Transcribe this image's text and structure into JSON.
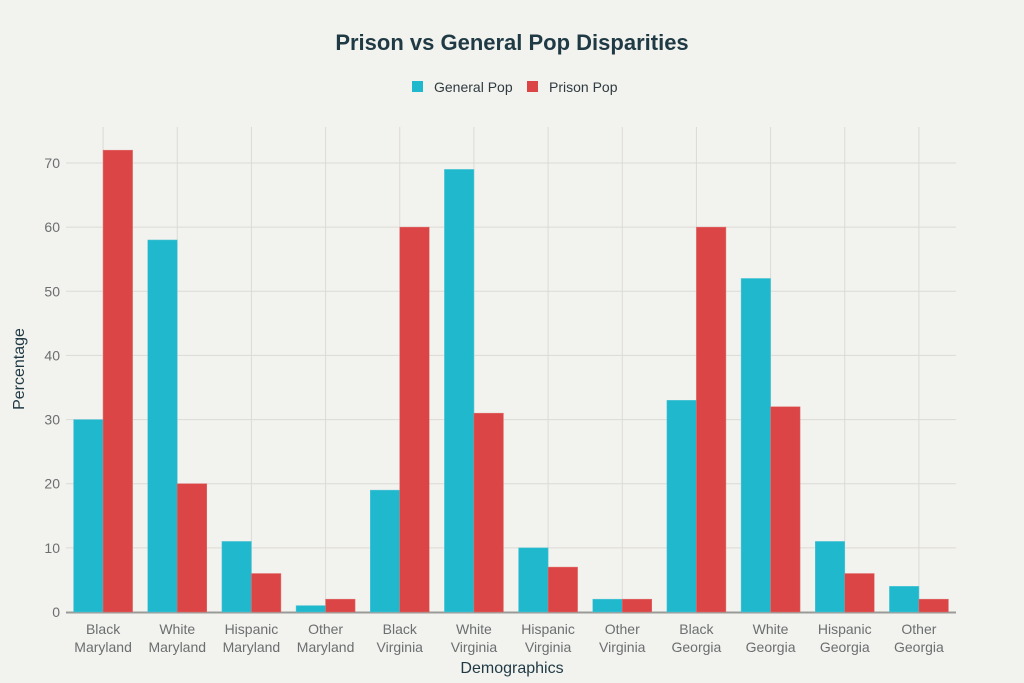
{
  "chart_data": {
    "type": "bar",
    "title": "Prison vs General Pop Disparities",
    "xlabel": "Demographics",
    "ylabel": "Percentage",
    "ylim": [
      0,
      75
    ],
    "yticks": [
      0,
      10,
      20,
      30,
      40,
      50,
      60,
      70
    ],
    "grid": true,
    "legend_position": "top-center",
    "categories": [
      [
        "Black",
        "Maryland"
      ],
      [
        "White",
        "Maryland"
      ],
      [
        "Hispanic",
        "Maryland"
      ],
      [
        "Other",
        "Maryland"
      ],
      [
        "Black",
        "Virginia"
      ],
      [
        "White",
        "Virginia"
      ],
      [
        "Hispanic",
        "Virginia"
      ],
      [
        "Other",
        "Virginia"
      ],
      [
        "Black",
        "Georgia"
      ],
      [
        "White",
        "Georgia"
      ],
      [
        "Hispanic",
        "Georgia"
      ],
      [
        "Other",
        "Georgia"
      ]
    ],
    "series": [
      {
        "name": "General Pop",
        "color": "#1fb8cd",
        "values": [
          30,
          58,
          11,
          1,
          19,
          69,
          10,
          2,
          33,
          52,
          11,
          4
        ]
      },
      {
        "name": "Prison Pop",
        "color": "#db4545",
        "values": [
          72,
          20,
          6,
          2,
          60,
          31,
          7,
          2,
          60,
          32,
          6,
          2
        ]
      }
    ]
  }
}
